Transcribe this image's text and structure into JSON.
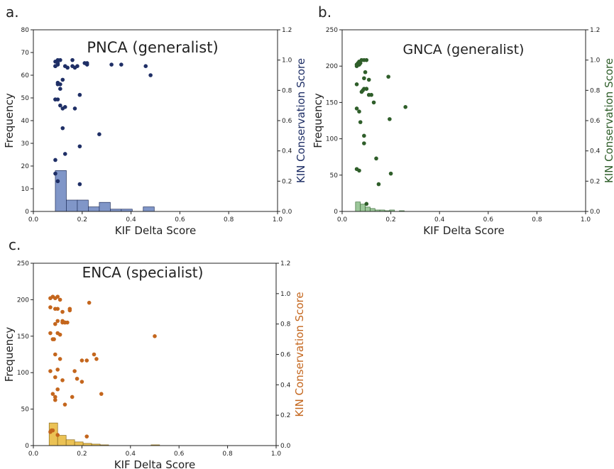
{
  "chart_data": [
    {
      "panel_label": "a.",
      "type": "bar",
      "title": "PNCA (generalist)",
      "xlabel": "KIF Delta Score",
      "ylabel": "Frequency",
      "ylabel_right": "KIN Conservation Score",
      "xlim": [
        0.0,
        1.0
      ],
      "ylim": [
        0,
        80
      ],
      "ylim_right": [
        0.0,
        1.2
      ],
      "xticks": [
        "0.0",
        "0.2",
        "0.4",
        "0.6",
        "0.8",
        "1.0"
      ],
      "yticks": [
        "0",
        "10",
        "20",
        "30",
        "40",
        "50",
        "60",
        "70",
        "80"
      ],
      "yticks_right": [
        "0.0",
        "0.2",
        "0.4",
        "0.6",
        "0.8",
        "1.0",
        "1.2"
      ],
      "grid": false,
      "colors": {
        "bar": "#8096c8",
        "bar_edge": "#1e2d5a",
        "point": "#1f2f66",
        "right_label": "#1f2f66"
      },
      "histogram": {
        "bins": [
          [
            0.09,
            0.135
          ],
          [
            0.135,
            0.18
          ],
          [
            0.18,
            0.225
          ],
          [
            0.225,
            0.27
          ],
          [
            0.27,
            0.315
          ],
          [
            0.315,
            0.36
          ],
          [
            0.36,
            0.405
          ],
          [
            0.405,
            0.45
          ],
          [
            0.45,
            0.495
          ]
        ],
        "counts": [
          18,
          5,
          5,
          2,
          4,
          1,
          1,
          0,
          2
        ]
      },
      "scatter": {
        "x": [
          0.09,
          0.1,
          0.1,
          0.11,
          0.12,
          0.09,
          0.1,
          0.09,
          0.1,
          0.11,
          0.14,
          0.16,
          0.17,
          0.18,
          0.21,
          0.22,
          0.1,
          0.11,
          0.12,
          0.13,
          0.09,
          0.1,
          0.1,
          0.12,
          0.13,
          0.17,
          0.19,
          0.11,
          0.09,
          0.13,
          0.09,
          0.09,
          0.19,
          0.27,
          0.32,
          0.36,
          0.46,
          0.48,
          0.16,
          0.19,
          0.22
        ],
        "y": [
          0.99,
          1.0,
          0.97,
          1.0,
          0.87,
          0.96,
          0.98,
          0.74,
          0.85,
          0.81,
          0.95,
          1.0,
          0.95,
          0.96,
          0.98,
          0.97,
          0.74,
          0.7,
          0.68,
          0.96,
          0.25,
          0.2,
          0.84,
          0.55,
          0.38,
          0.68,
          0.43,
          0.84,
          0.34,
          0.69,
          0.74,
          0.96,
          0.77,
          0.51,
          0.97,
          0.97,
          0.96,
          0.9,
          0.96,
          0.18,
          0.98
        ]
      }
    },
    {
      "panel_label": "b.",
      "type": "bar",
      "title": "GNCA (generalist)",
      "xlabel": "KIF Delta Score",
      "ylabel": "Frequency",
      "ylabel_right": "KIN Conservation Score",
      "xlim": [
        0.0,
        1.0
      ],
      "ylim": [
        0,
        250
      ],
      "ylim_right": [
        0.0,
        1.2
      ],
      "xticks": [
        "0.0",
        "0.2",
        "0.4",
        "0.6",
        "0.8",
        "1.0"
      ],
      "yticks": [
        "0",
        "50",
        "100",
        "150",
        "200",
        "250"
      ],
      "yticks_right": [
        "0.0",
        "0.2",
        "0.4",
        "0.6",
        "0.8",
        "1.0",
        "1.2"
      ],
      "grid": false,
      "colors": {
        "bar": "#9cc79a",
        "bar_edge": "#3d6e3a",
        "point": "#2f5e2a",
        "right_label": "#2f5e2a"
      },
      "histogram": {
        "bins": [
          [
            0.055,
            0.075
          ],
          [
            0.075,
            0.095
          ],
          [
            0.095,
            0.115
          ],
          [
            0.115,
            0.135
          ],
          [
            0.135,
            0.155
          ],
          [
            0.155,
            0.175
          ],
          [
            0.175,
            0.195
          ],
          [
            0.195,
            0.215
          ],
          [
            0.215,
            0.235
          ],
          [
            0.235,
            0.255
          ]
        ],
        "counts": [
          13,
          10,
          6,
          4,
          2,
          2,
          1,
          2,
          0,
          1
        ]
      },
      "scatter": {
        "x": [
          0.06,
          0.065,
          0.07,
          0.075,
          0.08,
          0.06,
          0.065,
          0.07,
          0.09,
          0.1,
          0.1,
          0.11,
          0.12,
          0.06,
          0.07,
          0.08,
          0.09,
          0.09,
          0.11,
          0.06,
          0.06,
          0.07,
          0.09,
          0.09,
          0.1,
          0.14,
          0.15,
          0.19,
          0.195,
          0.2,
          0.06,
          0.075,
          0.095,
          0.1,
          0.26,
          0.07,
          0.085,
          0.13
        ],
        "y": [
          0.97,
          0.98,
          0.99,
          0.98,
          1.0,
          0.96,
          0.97,
          0.97,
          1.0,
          1.0,
          0.81,
          0.87,
          0.77,
          0.68,
          0.66,
          0.79,
          0.5,
          0.45,
          0.77,
          0.84,
          0.28,
          0.27,
          0.81,
          0.88,
          0.81,
          0.35,
          0.18,
          0.89,
          0.61,
          0.25,
          0.97,
          0.59,
          0.92,
          0.05,
          0.69,
          0.97,
          0.8,
          0.72
        ]
      }
    },
    {
      "panel_label": "c.",
      "type": "bar",
      "title": "ENCA (specialist)",
      "xlabel": "KIF Delta Score",
      "ylabel": "Frequency",
      "ylabel_right": "KIN Conservation Score",
      "xlim": [
        0.0,
        1.0
      ],
      "ylim": [
        0,
        250
      ],
      "ylim_right": [
        0.0,
        1.2
      ],
      "xticks": [
        "0.0",
        "0.2",
        "0.4",
        "0.6",
        "0.8",
        "1.0"
      ],
      "yticks": [
        "0",
        "50",
        "100",
        "150",
        "200",
        "250"
      ],
      "yticks_right": [
        "0.0",
        "0.2",
        "0.4",
        "0.6",
        "0.8",
        "1.0",
        "1.2"
      ],
      "grid": false,
      "colors": {
        "bar": "#ebc255",
        "bar_edge": "#8a6a1a",
        "point": "#c4661d",
        "right_label": "#c4661d"
      },
      "histogram": {
        "bins": [
          [
            0.065,
            0.1
          ],
          [
            0.1,
            0.135
          ],
          [
            0.135,
            0.17
          ],
          [
            0.17,
            0.205
          ],
          [
            0.205,
            0.24
          ],
          [
            0.24,
            0.275
          ],
          [
            0.275,
            0.31
          ],
          [
            0.31,
            0.345
          ],
          [
            0.345,
            0.38
          ],
          [
            0.38,
            0.415
          ],
          [
            0.415,
            0.45
          ],
          [
            0.45,
            0.485
          ],
          [
            0.485,
            0.52
          ]
        ],
        "counts": [
          31,
          14,
          8,
          5,
          3,
          2,
          1,
          0,
          0,
          0,
          0,
          0,
          1
        ]
      },
      "scatter": {
        "x": [
          0.07,
          0.08,
          0.09,
          0.1,
          0.11,
          0.07,
          0.09,
          0.1,
          0.12,
          0.12,
          0.15,
          0.15,
          0.09,
          0.1,
          0.12,
          0.13,
          0.14,
          0.08,
          0.1,
          0.11,
          0.13,
          0.17,
          0.09,
          0.1,
          0.07,
          0.08,
          0.09,
          0.18,
          0.2,
          0.22,
          0.23,
          0.25,
          0.26,
          0.28,
          0.5,
          0.07,
          0.09,
          0.1,
          0.12,
          0.16,
          0.2,
          0.13,
          0.08,
          0.1,
          0.22,
          0.07,
          0.075,
          0.09,
          0.11,
          0.085
        ],
        "y": [
          0.97,
          0.98,
          0.97,
          0.98,
          0.96,
          0.91,
          0.9,
          0.9,
          0.88,
          0.82,
          0.9,
          0.89,
          0.8,
          0.82,
          0.81,
          0.81,
          0.81,
          0.7,
          0.74,
          0.73,
          0.81,
          0.49,
          0.6,
          0.5,
          0.49,
          0.34,
          0.32,
          0.44,
          0.56,
          0.56,
          0.94,
          0.6,
          0.57,
          0.34,
          0.72,
          0.74,
          0.45,
          0.37,
          0.43,
          0.32,
          0.42,
          0.27,
          0.1,
          0.07,
          0.06,
          0.09,
          0.1,
          0.3,
          0.57,
          0.7
        ]
      }
    }
  ]
}
